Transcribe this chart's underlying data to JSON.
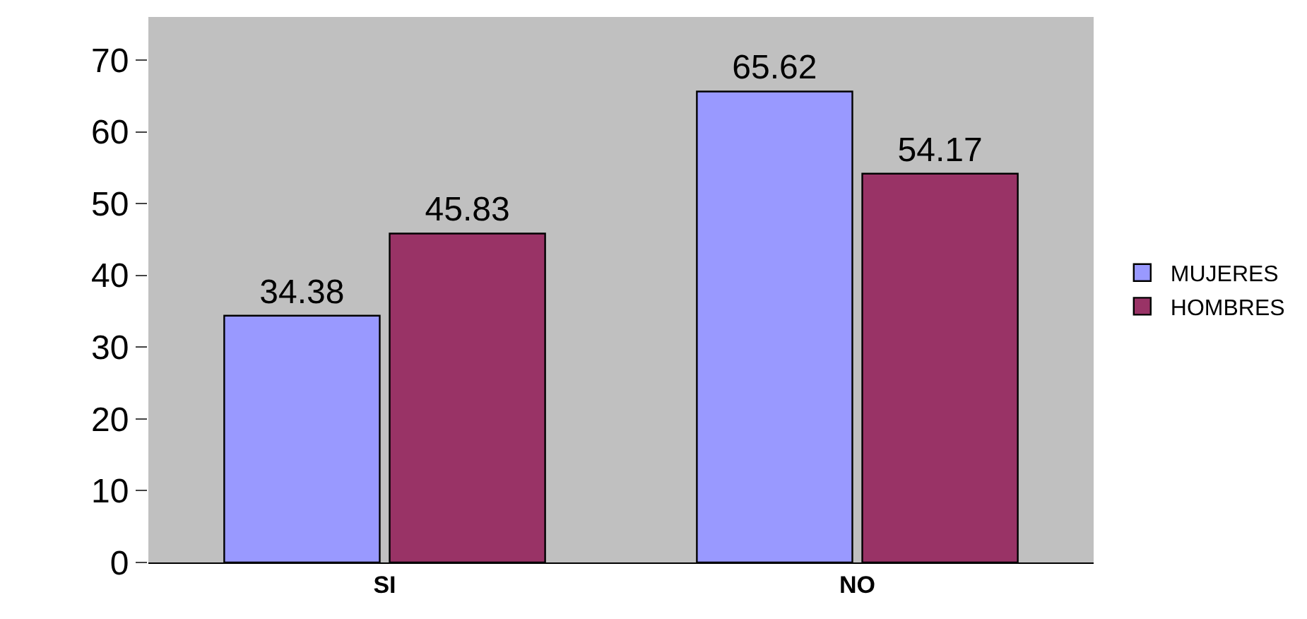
{
  "chart_data": {
    "type": "bar",
    "categories": [
      "SI",
      "NO"
    ],
    "series": [
      {
        "name": "MUJERES",
        "color": "#9999ff",
        "values": [
          34.38,
          65.62
        ]
      },
      {
        "name": "HOMBRES",
        "color": "#993366",
        "values": [
          45.83,
          54.17
        ]
      }
    ],
    "ylim": [
      0,
      76
    ],
    "yticks": [
      0,
      10,
      20,
      30,
      40,
      50,
      60,
      70
    ],
    "data_labels": true,
    "grid": false,
    "legend": "right"
  }
}
